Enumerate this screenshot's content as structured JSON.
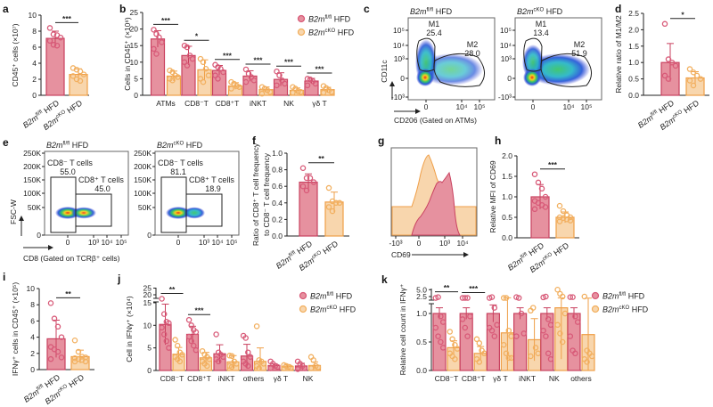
{
  "colors": {
    "wt_fill": "#e6919f",
    "wt_line": "#c9415f",
    "wt_point": "#d85a78",
    "ko_fill": "#f8d6ad",
    "ko_line": "#ef9f48",
    "ko_point": "#f2b060"
  },
  "groups": {
    "wt": {
      "gene": "B2m",
      "sup": "fl/fl",
      "suffix": " HFD"
    },
    "ko": {
      "gene": "B2m",
      "sup": "cKO",
      "suffix": " HFD"
    }
  },
  "panel_letters": [
    "a",
    "b",
    "c",
    "d",
    "e",
    "f",
    "g",
    "h",
    "i",
    "j",
    "k"
  ],
  "flow_c": {
    "titles": [
      "B2m fl/fl HFD",
      "B2m cKO HFD"
    ],
    "gates": [
      {
        "m1": "M1",
        "m1_val": "25.4",
        "m2": "M2",
        "m2_val": "28.0"
      },
      {
        "m1": "M1",
        "m1_val": "13.4",
        "m2": "M2",
        "m2_val": "51.9"
      }
    ],
    "yticks": [
      "10⁵",
      "10⁴",
      "10³",
      "0",
      "-10³"
    ],
    "xticks": [
      "0",
      "10⁴",
      "10⁵"
    ],
    "ylabel": "CD11c",
    "xlabel": "CD206 (Gated on ATMs)"
  },
  "flow_e": {
    "gates": [
      {
        "neg": "CD8⁻ T cells",
        "neg_val": "55.0",
        "pos": "CD8⁺ T cells",
        "pos_val": "45.0"
      },
      {
        "neg": "CD8⁻ T cells",
        "neg_val": "81.1",
        "pos": "CD8⁺ T cells",
        "pos_val": "18.9"
      }
    ],
    "yticks": [
      "250K",
      "200K",
      "150K",
      "100K",
      "50K",
      "0"
    ],
    "xticks": [
      "0",
      "10³",
      "10⁴",
      "10⁵"
    ],
    "ylabel": "FSC-W",
    "xlabel": "CD8 (Gated on TCRβ⁺ cells)"
  },
  "hist_g": {
    "xticks": [
      "-10³",
      "0",
      "10³",
      "10⁴"
    ],
    "xlabel": "CD69"
  },
  "chart_data": [
    {
      "panel": "a",
      "type": "bar",
      "ylabel": "CD45⁺ cells (×10⁷)",
      "ylim": [
        0,
        10
      ],
      "yticks": [
        "0",
        "2",
        "4",
        "6",
        "8",
        "10"
      ],
      "yticks_v": [
        0,
        2,
        4,
        6,
        8,
        10
      ],
      "significance": "***",
      "groups": [
        {
          "key": "wt",
          "mean": 7.1,
          "sd": 0.9,
          "points": [
            8.4,
            7.6,
            7.5,
            7.2,
            6.8,
            6.3,
            6.2
          ]
        },
        {
          "key": "ko",
          "mean": 2.6,
          "sd": 0.7,
          "points": [
            3.4,
            3.2,
            3.0,
            2.6,
            2.4,
            2.0,
            1.8
          ]
        }
      ]
    },
    {
      "panel": "b",
      "type": "bar",
      "ylabel": "Cells in CD45⁺ (×10⁶)",
      "ylim": [
        0,
        25
      ],
      "yticks": [
        "0",
        "5",
        "10",
        "15",
        "20",
        "25"
      ],
      "yticks_v": [
        0,
        5,
        10,
        15,
        20,
        25
      ],
      "categories": [
        "ATMs",
        "CD8⁻T",
        "CD8⁺T",
        "iNKT",
        "NK",
        "γδ T"
      ],
      "significance": [
        "***",
        "*",
        "***",
        "***",
        "***",
        "***"
      ],
      "series": [
        {
          "key": "wt",
          "mean": [
            17.0,
            12.0,
            7.5,
            5.8,
            4.8,
            4.3
          ],
          "sd": [
            2.5,
            2.8,
            1.5,
            1.6,
            2.0,
            0.8
          ],
          "points": [
            [
              19.8,
              18.5,
              17.5,
              16,
              14,
              12.5
            ],
            [
              15,
              14.5,
              12,
              11,
              10,
              9
            ],
            [
              9.2,
              8.5,
              8,
              7,
              6,
              5
            ],
            [
              7.8,
              6.5,
              5.5,
              4.5,
              4
            ],
            [
              7.2,
              6,
              4.5,
              3.5,
              3
            ],
            [
              5,
              4.8,
              4.2,
              3.5,
              3
            ]
          ]
        },
        {
          "key": "ko",
          "mean": [
            5.8,
            7.7,
            2.8,
            1.7,
            1.5,
            1.7
          ],
          "sd": [
            1.5,
            3.0,
            1.0,
            0.8,
            0.7,
            0.7
          ],
          "points": [
            [
              7.5,
              7,
              6,
              5.5,
              5,
              4.5
            ],
            [
              11,
              10,
              8,
              6,
              5,
              4
            ],
            [
              4,
              3.5,
              2.8,
              2.5,
              2
            ],
            [
              2.5,
              2,
              1.5,
              1,
              0.5
            ],
            [
              2.5,
              2,
              1.2,
              1,
              0.8
            ],
            [
              2.8,
              2.2,
              1.5,
              1,
              0.8
            ]
          ]
        }
      ]
    },
    {
      "panel": "d",
      "type": "bar",
      "ylabel": "Relative ratio of M1/M2",
      "ylim": [
        0,
        2.5
      ],
      "yticks": [
        "0.0",
        "0.5",
        "1.0",
        "1.5",
        "2.0",
        "2.5"
      ],
      "yticks_v": [
        0,
        0.5,
        1,
        1.5,
        2,
        2.5
      ],
      "significance": "*",
      "groups": [
        {
          "key": "wt",
          "mean": 1.0,
          "sd": 0.58,
          "points": [
            2.18,
            1.1,
            1.0,
            0.9,
            0.6,
            0.5
          ]
        },
        {
          "key": "ko",
          "mean": 0.53,
          "sd": 0.19,
          "points": [
            0.8,
            0.7,
            0.6,
            0.5,
            0.45,
            0.3
          ]
        }
      ]
    },
    {
      "panel": "f",
      "type": "bar",
      "ylabel": "Ratio of CD8⁺ T cell frequency",
      "ylabel2": "to CD8⁻ T cell frequency",
      "ylim": [
        0,
        1
      ],
      "yticks": [
        "0.0",
        "0.2",
        "0.4",
        "0.6",
        "0.8",
        "1.0"
      ],
      "yticks_v": [
        0,
        0.2,
        0.4,
        0.6,
        0.8,
        1
      ],
      "significance": "**",
      "groups": [
        {
          "key": "wt",
          "mean": 0.65,
          "sd": 0.1,
          "points": [
            0.82,
            0.7,
            0.7,
            0.65,
            0.6,
            0.55
          ]
        },
        {
          "key": "ko",
          "mean": 0.41,
          "sd": 0.12,
          "points": [
            0.58,
            0.42,
            0.4,
            0.4,
            0.35,
            0.3
          ]
        }
      ]
    },
    {
      "panel": "h",
      "type": "bar",
      "ylabel": "Relative MFI of CD69",
      "ylim": [
        0,
        2
      ],
      "yticks": [
        "0.0",
        "0.5",
        "1.0",
        "1.5",
        "2.0"
      ],
      "yticks_v": [
        0,
        0.5,
        1,
        1.5,
        2
      ],
      "significance": "***",
      "groups": [
        {
          "key": "wt",
          "mean": 1.0,
          "sd": 0.3,
          "points": [
            1.55,
            1.35,
            1.2,
            1.0,
            0.9,
            0.85,
            0.8,
            0.75,
            0.7
          ]
        },
        {
          "key": "ko",
          "mean": 0.5,
          "sd": 0.13,
          "points": [
            0.78,
            0.65,
            0.55,
            0.5,
            0.5,
            0.48,
            0.45,
            0.42,
            0.4
          ]
        }
      ]
    },
    {
      "panel": "i",
      "type": "bar",
      "ylabel": "IFNγ⁺ cells in CD45⁺ (×10⁵)",
      "ylim": [
        0,
        10
      ],
      "yticks": [
        "0",
        "2",
        "4",
        "6",
        "8",
        "10"
      ],
      "yticks_v": [
        0,
        2,
        4,
        6,
        8,
        10
      ],
      "significance": "**",
      "groups": [
        {
          "key": "wt",
          "mean": 3.8,
          "sd": 2.3,
          "points": [
            8.2,
            6.3,
            5.3,
            4.0,
            2.8,
            2.5,
            2.2,
            1.5,
            1.3
          ]
        },
        {
          "key": "ko",
          "mean": 1.6,
          "sd": 0.8,
          "points": [
            3.6,
            2.2,
            1.6,
            1.5,
            1.4,
            1.3,
            1.2,
            1.0,
            1.0
          ]
        }
      ]
    },
    {
      "panel": "j",
      "type": "bar",
      "ylabel": "Cell in IFNγ⁺ (×10⁴)",
      "ylim": [
        0,
        25
      ],
      "axis_break": [
        15,
        20
      ],
      "yticks": [
        "0",
        "5",
        "10",
        "15",
        "20",
        "25"
      ],
      "yticks_v": [
        0,
        5,
        10,
        15,
        20,
        25
      ],
      "categories": [
        "CD8⁻T",
        "CD8⁺T",
        "iNKT",
        "others",
        "γδ T",
        "NK"
      ],
      "significance": [
        "**",
        "***",
        "",
        "",
        "",
        ""
      ],
      "series": [
        {
          "key": "wt",
          "mean": [
            10.2,
            8.0,
            3.7,
            3.2,
            1.1,
            1.0
          ],
          "sd": [
            4.5,
            1.8,
            2.0,
            2.6,
            0.4,
            0.6
          ],
          "points": [
            [
              17,
              12.5,
              10.8,
              10.5,
              9.5,
              8,
              6.5,
              5
            ],
            [
              11.2,
              10,
              9,
              8.5,
              7.5,
              6.5,
              5.5,
              4.5
            ],
            [
              8,
              4,
              3.5,
              3,
              2.5,
              2
            ],
            [
              7.7,
              7.2,
              4,
              3,
              2,
              1.5,
              1
            ],
            [
              2,
              1.5,
              1,
              0.8,
              0.5
            ],
            [
              2,
              1.5,
              1,
              0.5,
              0.3
            ]
          ]
        },
        {
          "key": "ko",
          "mean": [
            3.6,
            2.8,
            1.9,
            2.0,
            0.9,
            1.1
          ],
          "sd": [
            1.5,
            1.2,
            1.4,
            3.0,
            0.4,
            0.8
          ],
          "points": [
            [
              6.8,
              5.5,
              4,
              3.5,
              3,
              2.5,
              2
            ],
            [
              4.3,
              3.5,
              3,
              2.5,
              2,
              1.5,
              1
            ],
            [
              3.3,
              3.2,
              2,
              1.5,
              1,
              0.8
            ],
            [
              9.8,
              2.3,
              2,
              1.5,
              1,
              0.5
            ],
            [
              1.2,
              1,
              0.8,
              0.6,
              0.5
            ],
            [
              3,
              2.3,
              1,
              0.7,
              0.5
            ]
          ]
        }
      ]
    },
    {
      "panel": "k",
      "type": "bar",
      "ylabel": "Relative cell count in IFNγ⁺",
      "ylim": [
        0,
        5
      ],
      "axis_break": [
        1.2,
        2.5
      ],
      "yticks": [
        "0.0",
        "0.5",
        "1.0",
        "2.5",
        "5.0"
      ],
      "yticks_v": [
        0,
        0.5,
        1,
        2.5,
        5
      ],
      "categories": [
        "CD8⁻T",
        "CD8⁺T",
        "γδ T",
        "iNKT",
        "NK",
        "others"
      ],
      "significance": [
        "**",
        "***",
        "",
        "",
        "",
        ""
      ],
      "series": [
        {
          "key": "wt",
          "mean": [
            1.0,
            1.0,
            1.0,
            1.0,
            1.0,
            1.0
          ],
          "sd": [
            0.1,
            0.1,
            0.15,
            0.1,
            0.1,
            0.1
          ],
          "points": [
            [
              2.0,
              2.3,
              0.95,
              0.85,
              0.75,
              0.6,
              0.5,
              0.4
            ],
            [
              2.0,
              2.0,
              2.0,
              0.95,
              0.9,
              0.75,
              0.6
            ],
            [
              2.0,
              2.3,
              1.1,
              0.8,
              0.75,
              0.7,
              0.6
            ],
            [
              2.3,
              2.0,
              1.0,
              0.65,
              0.6
            ],
            [
              2.2,
              2.5,
              0.9,
              0.8,
              0.7,
              0.6,
              0.3,
              0.2
            ],
            [
              2.3,
              2.3,
              0.95,
              0.85,
              0.6,
              0.35,
              0.3
            ]
          ]
        },
        {
          "key": "ko",
          "mean": [
            0.4,
            0.3,
            0.66,
            0.54,
            1.1,
            0.63
          ],
          "sd": [
            0.12,
            0.12,
            1.4,
            0.37,
            0.9,
            1.3
          ],
          "points": [
            [
              0.68,
              0.55,
              0.45,
              0.38,
              0.3,
              0.25,
              0.2
            ],
            [
              0.55,
              0.48,
              0.35,
              0.3,
              0.2,
              0.15
            ],
            [
              2.0,
              2.0,
              0.7,
              0.6,
              0.45,
              0.3,
              0.22,
              0.22
            ],
            [
              1.05,
              1.1,
              0.4,
              0.3,
              0.25
            ],
            [
              5.0,
              3.5,
              2.5,
              1.0,
              0.8,
              0.65,
              0.5
            ],
            [
              2.5,
              0.35,
              0.3,
              0.25,
              0.2,
              0.15
            ]
          ]
        }
      ]
    }
  ]
}
